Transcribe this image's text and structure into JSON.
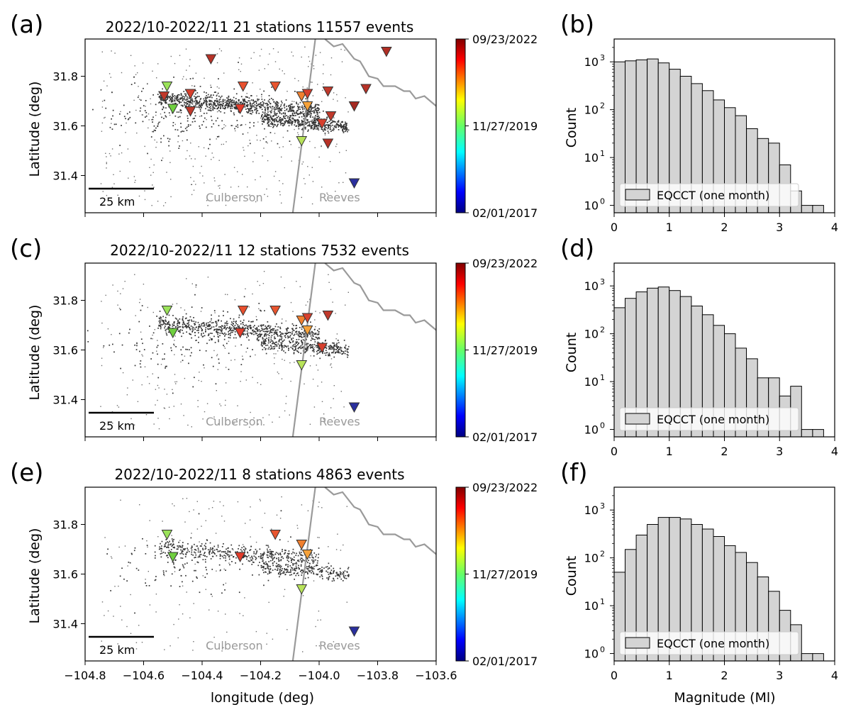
{
  "figure": {
    "map_xlabel": "longitude (deg)",
    "map_ylabel": "Latitude (deg)",
    "hist_xlabel": "Magnitude (Ml)",
    "hist_ylabel": "Count",
    "scale_bar_label": "25 km",
    "county_west": "Culberson",
    "county_east": "Reeves",
    "colorbar_ticks": [
      "09/23/2022",
      "11/27/2019",
      "02/01/2017"
    ],
    "colors": {
      "event_dot": "#333333",
      "county_line": "#9a9a9a",
      "bar_fill": "#d4d4d4",
      "bar_edge": "#000000"
    }
  },
  "chart_data": [
    {
      "type": "scatter",
      "panel_label": "(a)",
      "title": "2022/10-2022/11 21 stations 11557 events",
      "xlim": [
        -104.8,
        -103.6
      ],
      "ylim": [
        31.25,
        31.95
      ],
      "xticks": [
        -104.8,
        -104.6,
        -104.4,
        -104.2,
        -104.0,
        -103.8,
        -103.6
      ],
      "yticks": [
        31.4,
        31.6,
        31.8
      ],
      "ytick_labels": [
        "31.4",
        "31.6",
        "31.8"
      ],
      "event_count": 11557,
      "colorbar": {
        "range": [
          "02/01/2017",
          "09/23/2022"
        ],
        "colormap": "jet"
      },
      "stations": [
        {
          "lon": -104.52,
          "lat": 31.76,
          "color": "#9be35a"
        },
        {
          "lon": -104.53,
          "lat": 31.72,
          "color": "#c0392b"
        },
        {
          "lon": -104.5,
          "lat": 31.67,
          "color": "#6fcf3f"
        },
        {
          "lon": -104.44,
          "lat": 31.73,
          "color": "#d7402d"
        },
        {
          "lon": -104.44,
          "lat": 31.66,
          "color": "#c0392b"
        },
        {
          "lon": -104.37,
          "lat": 31.87,
          "color": "#b83227"
        },
        {
          "lon": -104.26,
          "lat": 31.76,
          "color": "#e8502e"
        },
        {
          "lon": -104.27,
          "lat": 31.67,
          "color": "#e33b2a"
        },
        {
          "lon": -104.15,
          "lat": 31.76,
          "color": "#e8552f"
        },
        {
          "lon": -104.06,
          "lat": 31.72,
          "color": "#f08030"
        },
        {
          "lon": -104.04,
          "lat": 31.73,
          "color": "#d7402d"
        },
        {
          "lon": -104.04,
          "lat": 31.68,
          "color": "#f6a23a"
        },
        {
          "lon": -103.97,
          "lat": 31.74,
          "color": "#c0392b"
        },
        {
          "lon": -104.06,
          "lat": 31.54,
          "color": "#b8e35a"
        },
        {
          "lon": -103.99,
          "lat": 31.61,
          "color": "#d7402d"
        },
        {
          "lon": -103.96,
          "lat": 31.64,
          "color": "#c0392b"
        },
        {
          "lon": -103.97,
          "lat": 31.53,
          "color": "#b83227"
        },
        {
          "lon": -103.88,
          "lat": 31.68,
          "color": "#a52a22"
        },
        {
          "lon": -103.84,
          "lat": 31.75,
          "color": "#b83227"
        },
        {
          "lon": -103.77,
          "lat": 31.9,
          "color": "#b02e24"
        },
        {
          "lon": -103.88,
          "lat": 31.37,
          "color": "#2a2f9e"
        }
      ]
    },
    {
      "type": "bar",
      "panel_label": "(b)",
      "xlim": [
        0,
        4
      ],
      "xticks": [
        0,
        1,
        2,
        3,
        4
      ],
      "yscale": "log",
      "ylim": [
        0.7,
        3000
      ],
      "legend": "EQCCT (one month)",
      "bin_width": 0.2,
      "bin_starts": [
        0.0,
        0.2,
        0.4,
        0.6,
        0.8,
        1.0,
        1.2,
        1.4,
        1.6,
        1.8,
        2.0,
        2.2,
        2.4,
        2.6,
        2.8,
        3.0,
        3.2,
        3.4,
        3.6
      ],
      "values": [
        1000,
        1050,
        1100,
        1150,
        950,
        700,
        500,
        350,
        250,
        160,
        110,
        75,
        40,
        25,
        20,
        7,
        2,
        1,
        1
      ]
    },
    {
      "type": "scatter",
      "panel_label": "(c)",
      "title": "2022/10-2022/11 12 stations 7532 events",
      "xlim": [
        -104.8,
        -103.6
      ],
      "ylim": [
        31.25,
        31.95
      ],
      "xticks": [
        -104.8,
        -104.6,
        -104.4,
        -104.2,
        -104.0,
        -103.8,
        -103.6
      ],
      "yticks": [
        31.4,
        31.6,
        31.8
      ],
      "ytick_labels": [
        "31.4",
        "31.6",
        "31.8"
      ],
      "event_count": 7532,
      "colorbar": {
        "range": [
          "02/01/2017",
          "09/23/2022"
        ],
        "colormap": "jet"
      },
      "stations": [
        {
          "lon": -104.52,
          "lat": 31.76,
          "color": "#9be35a"
        },
        {
          "lon": -104.5,
          "lat": 31.67,
          "color": "#6fcf3f"
        },
        {
          "lon": -104.26,
          "lat": 31.76,
          "color": "#e8502e"
        },
        {
          "lon": -104.27,
          "lat": 31.67,
          "color": "#e33b2a"
        },
        {
          "lon": -104.15,
          "lat": 31.76,
          "color": "#e8552f"
        },
        {
          "lon": -104.06,
          "lat": 31.72,
          "color": "#f08030"
        },
        {
          "lon": -104.04,
          "lat": 31.73,
          "color": "#d7402d"
        },
        {
          "lon": -104.04,
          "lat": 31.68,
          "color": "#f6a23a"
        },
        {
          "lon": -103.97,
          "lat": 31.74,
          "color": "#c0392b"
        },
        {
          "lon": -104.06,
          "lat": 31.54,
          "color": "#b8e35a"
        },
        {
          "lon": -103.99,
          "lat": 31.61,
          "color": "#d7402d"
        },
        {
          "lon": -103.88,
          "lat": 31.37,
          "color": "#2a2f9e"
        }
      ]
    },
    {
      "type": "bar",
      "panel_label": "(d)",
      "xlim": [
        0,
        4
      ],
      "xticks": [
        0,
        1,
        2,
        3,
        4
      ],
      "yscale": "log",
      "ylim": [
        0.7,
        3000
      ],
      "legend": "EQCCT (one month)",
      "bin_width": 0.2,
      "bin_starts": [
        0.0,
        0.2,
        0.4,
        0.6,
        0.8,
        1.0,
        1.2,
        1.4,
        1.6,
        1.8,
        2.0,
        2.2,
        2.4,
        2.6,
        2.8,
        3.0,
        3.2,
        3.4,
        3.6
      ],
      "values": [
        350,
        550,
        750,
        900,
        950,
        800,
        600,
        380,
        250,
        150,
        100,
        50,
        30,
        12,
        12,
        5,
        8,
        1,
        1
      ]
    },
    {
      "type": "scatter",
      "panel_label": "(e)",
      "title": "2022/10-2022/11 8 stations 4863 events",
      "xlim": [
        -104.8,
        -103.6
      ],
      "ylim": [
        31.25,
        31.95
      ],
      "xticks": [
        -104.8,
        -104.6,
        -104.4,
        -104.2,
        -104.0,
        -103.8,
        -103.6
      ],
      "xtick_labels": [
        "−104.8",
        "−104.6",
        "−104.4",
        "−104.2",
        "−104.0",
        "−103.8",
        "−103.6"
      ],
      "yticks": [
        31.4,
        31.6,
        31.8
      ],
      "ytick_labels": [
        "31.4",
        "31.6",
        "31.8"
      ],
      "event_count": 4863,
      "colorbar": {
        "range": [
          "02/01/2017",
          "09/23/2022"
        ],
        "colormap": "jet"
      },
      "stations": [
        {
          "lon": -104.52,
          "lat": 31.76,
          "color": "#9be35a"
        },
        {
          "lon": -104.5,
          "lat": 31.67,
          "color": "#6fcf3f"
        },
        {
          "lon": -104.27,
          "lat": 31.67,
          "color": "#e33b2a"
        },
        {
          "lon": -104.15,
          "lat": 31.76,
          "color": "#e8552f"
        },
        {
          "lon": -104.06,
          "lat": 31.72,
          "color": "#f08030"
        },
        {
          "lon": -104.04,
          "lat": 31.68,
          "color": "#f6a23a"
        },
        {
          "lon": -104.06,
          "lat": 31.54,
          "color": "#b8e35a"
        },
        {
          "lon": -103.88,
          "lat": 31.37,
          "color": "#2a2f9e"
        }
      ]
    },
    {
      "type": "bar",
      "panel_label": "(f)",
      "xlim": [
        0,
        4
      ],
      "xticks": [
        0,
        1,
        2,
        3,
        4
      ],
      "yscale": "log",
      "ylim": [
        0.7,
        3000
      ],
      "legend": "EQCCT (one month)",
      "bin_width": 0.2,
      "bin_starts": [
        0.0,
        0.2,
        0.4,
        0.6,
        0.8,
        1.0,
        1.2,
        1.4,
        1.6,
        1.8,
        2.0,
        2.2,
        2.4,
        2.6,
        2.8,
        3.0,
        3.2,
        3.4,
        3.6
      ],
      "values": [
        50,
        150,
        300,
        500,
        700,
        700,
        650,
        500,
        400,
        280,
        180,
        130,
        80,
        40,
        20,
        8,
        4,
        1,
        1
      ]
    }
  ]
}
